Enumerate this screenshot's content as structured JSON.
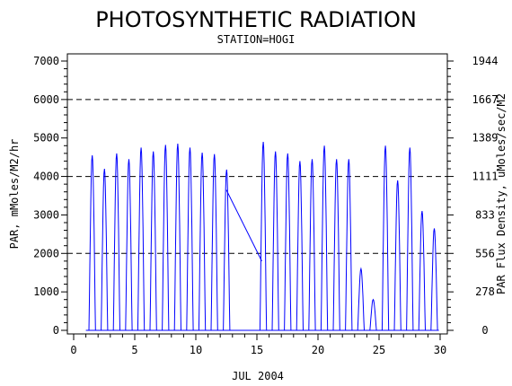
{
  "chart_data": {
    "type": "line",
    "title": "PHOTOSYNTHETIC RADIATION",
    "subtitle": "STATION=HOGI",
    "xlabel": "JUL 2004",
    "ylabel": "PAR, mMoles/M2/hr",
    "y2label": "PAR Flux Density, uMoles/sec/M2",
    "xlim": [
      0,
      30
    ],
    "ylim": [
      0,
      7000
    ],
    "x_ticks": [
      "0",
      "5",
      "10",
      "15",
      "20",
      "25",
      "30"
    ],
    "y_ticks": [
      "0",
      "1000",
      "2000",
      "3000",
      "4000",
      "5000",
      "6000",
      "7000"
    ],
    "y2_ticks": [
      "0",
      "278",
      "556",
      "833",
      "1111",
      "1389",
      "1667",
      "1944"
    ],
    "reference_lines_y": [
      2000,
      4000,
      6000
    ],
    "series": [
      {
        "color": "#0000ff",
        "daily_peaks": [
          {
            "day": 1,
            "peak": 4550
          },
          {
            "day": 2,
            "peak": 4200
          },
          {
            "day": 3,
            "peak": 4600
          },
          {
            "day": 4,
            "peak": 4450
          },
          {
            "day": 5,
            "peak": 4750
          },
          {
            "day": 6,
            "peak": 4650
          },
          {
            "day": 7,
            "peak": 4820
          },
          {
            "day": 8,
            "peak": 4850
          },
          {
            "day": 9,
            "peak": 4750
          },
          {
            "day": 10,
            "peak": 4620
          },
          {
            "day": 11,
            "peak": 4580
          },
          {
            "day": 12,
            "peak": 4180
          },
          {
            "day": 15,
            "peak": 4900
          },
          {
            "day": 16,
            "peak": 4650
          },
          {
            "day": 17,
            "peak": 4600
          },
          {
            "day": 18,
            "peak": 4400
          },
          {
            "day": 19,
            "peak": 4450
          },
          {
            "day": 20,
            "peak": 4800
          },
          {
            "day": 21,
            "peak": 4450
          },
          {
            "day": 22,
            "peak": 4450
          },
          {
            "day": 23,
            "peak": 1600
          },
          {
            "day": 24,
            "peak": 800
          },
          {
            "day": 25,
            "peak": 4800
          },
          {
            "day": 26,
            "peak": 3900
          },
          {
            "day": 27,
            "peak": 4750
          },
          {
            "day": 28,
            "peak": 3100
          },
          {
            "day": 29,
            "peak": 2650
          }
        ],
        "gap_line": [
          {
            "x": 12.5,
            "y": 3650
          },
          {
            "x": 15.4,
            "y": 1800
          }
        ]
      }
    ]
  }
}
